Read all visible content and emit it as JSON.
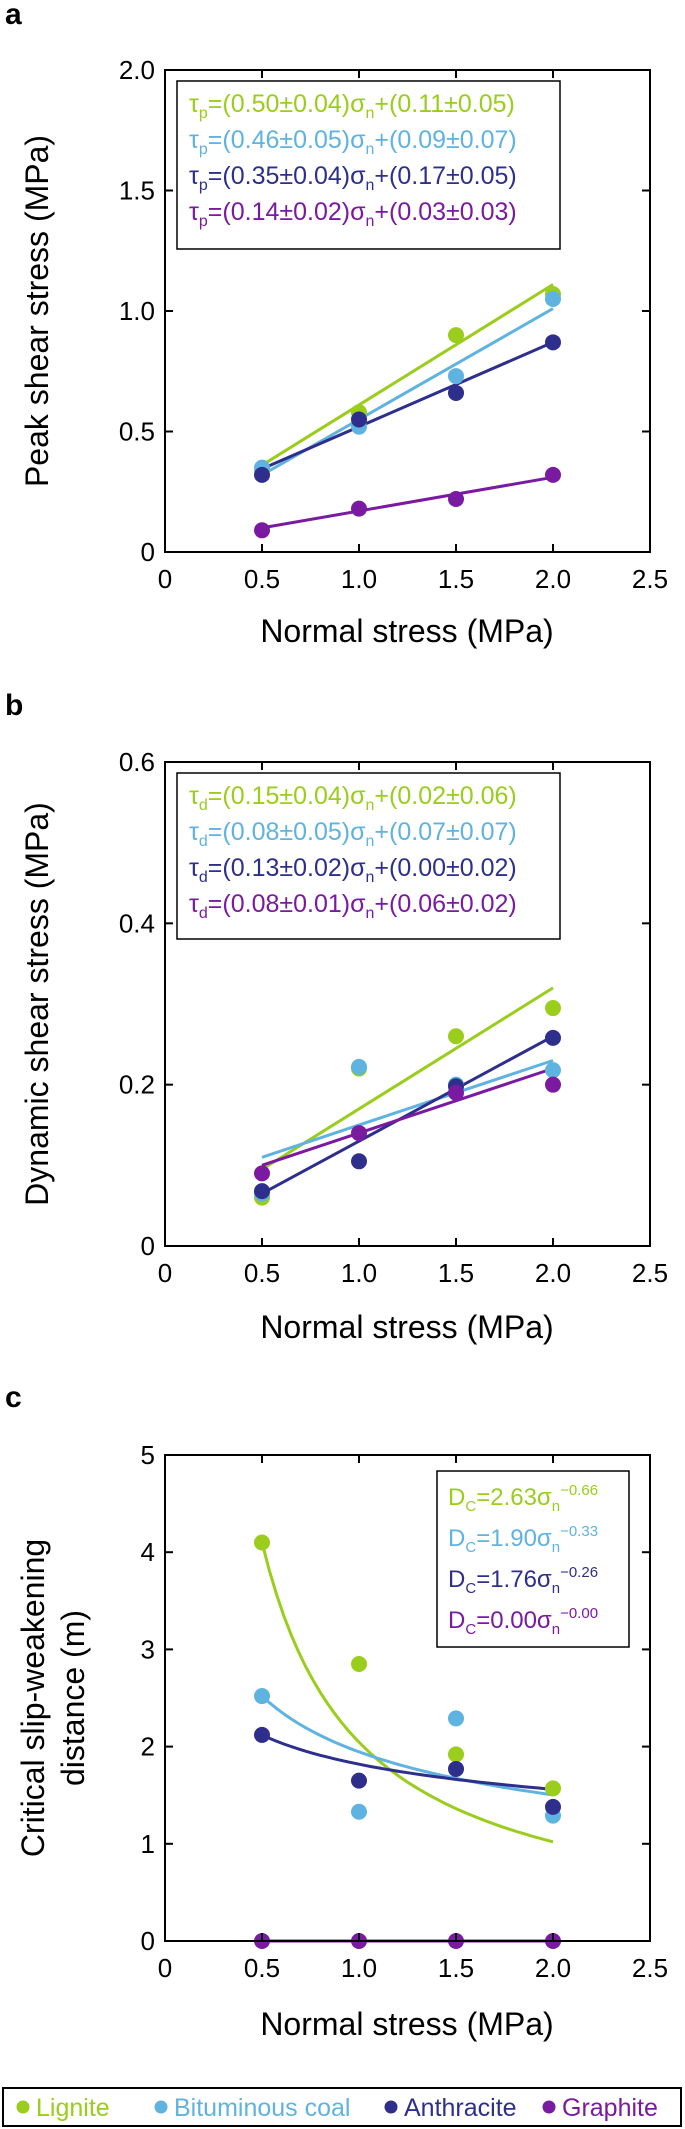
{
  "colors": {
    "lignite": "#9acd1c",
    "bituminous": "#5fb3e0",
    "anthracite": "#2e2f8c",
    "graphite": "#7a1aa0",
    "axis": "#000000"
  },
  "legend": {
    "items": [
      {
        "label": "Lignite",
        "color": "#9acd1c"
      },
      {
        "label": "Bituminous coal",
        "color": "#5fb3e0"
      },
      {
        "label": "Anthracite",
        "color": "#2e2f8c"
      },
      {
        "label": "Graphite",
        "color": "#7a1aa0"
      }
    ]
  },
  "chart_data": [
    {
      "type": "scatter",
      "panel_label": "a",
      "xlabel": "Normal stress (MPa)",
      "ylabel": "Peak shear stress (MPa)",
      "xlim": [
        0,
        2.5
      ],
      "ylim": [
        0,
        2.0
      ],
      "xticks": [
        "0",
        "0.5",
        "1.0",
        "1.5",
        "2.0",
        "2.5"
      ],
      "yticks": [
        "0",
        "0.5",
        "1.0",
        "1.5",
        "2.0"
      ],
      "x": [
        0.5,
        1.0,
        1.5,
        2.0
      ],
      "series": [
        {
          "name": "Lignite",
          "color": "#9acd1c",
          "values": [
            0.34,
            0.58,
            0.9,
            1.07
          ],
          "fit": {
            "a": 0.5,
            "b": 0.11
          },
          "eq": {
            "sym": "τ",
            "sub": "p",
            "pre": "=(0.50±0.04)σ",
            "post": "+(0.11±0.05)",
            "sub2": "n"
          }
        },
        {
          "name": "Bituminous coal",
          "color": "#5fb3e0",
          "values": [
            0.35,
            0.52,
            0.73,
            1.05
          ],
          "fit": {
            "a": 0.46,
            "b": 0.09
          },
          "eq": {
            "sym": "τ",
            "sub": "p",
            "pre": "=(0.46±0.05)σ",
            "post": "+(0.09±0.07)",
            "sub2": "n"
          }
        },
        {
          "name": "Anthracite",
          "color": "#2e2f8c",
          "values": [
            0.32,
            0.55,
            0.66,
            0.87
          ],
          "fit": {
            "a": 0.35,
            "b": 0.17
          },
          "eq": {
            "sym": "τ",
            "sub": "p",
            "pre": "=(0.35±0.04)σ",
            "post": "+(0.17±0.05)",
            "sub2": "n"
          }
        },
        {
          "name": "Graphite",
          "color": "#7a1aa0",
          "values": [
            0.09,
            0.18,
            0.22,
            0.32
          ],
          "fit": {
            "a": 0.14,
            "b": 0.03
          },
          "eq": {
            "sym": "τ",
            "sub": "p",
            "pre": "=(0.14±0.02)σ",
            "post": "+(0.03±0.03)",
            "sub2": "n"
          }
        }
      ]
    },
    {
      "type": "scatter",
      "panel_label": "b",
      "xlabel": "Normal stress (MPa)",
      "ylabel": "Dynamic shear stress (MPa)",
      "xlim": [
        0,
        2.5
      ],
      "ylim": [
        0,
        0.6
      ],
      "xticks": [
        "0",
        "0.5",
        "1.0",
        "1.5",
        "2.0",
        "2.5"
      ],
      "yticks": [
        "0",
        "0.2",
        "0.4",
        "0.6"
      ],
      "x": [
        0.5,
        1.0,
        1.5,
        2.0
      ],
      "series": [
        {
          "name": "Lignite",
          "color": "#9acd1c",
          "values": [
            0.06,
            0.22,
            0.26,
            0.295
          ],
          "fit": {
            "a": 0.15,
            "b": 0.02
          },
          "eq": {
            "sym": "τ",
            "sub": "d",
            "pre": "=(0.15±0.04)σ",
            "post": "+(0.02±0.06)",
            "sub2": "n"
          }
        },
        {
          "name": "Bituminous coal",
          "color": "#5fb3e0",
          "values": [
            0.065,
            0.222,
            0.2,
            0.218
          ],
          "fit": {
            "a": 0.08,
            "b": 0.07
          },
          "eq": {
            "sym": "τ",
            "sub": "d",
            "pre": "=(0.08±0.05)σ",
            "post": "+(0.07±0.07)",
            "sub2": "n"
          }
        },
        {
          "name": "Anthracite",
          "color": "#2e2f8c",
          "values": [
            0.068,
            0.105,
            0.198,
            0.258
          ],
          "fit": {
            "a": 0.13,
            "b": 0.0
          },
          "eq": {
            "sym": "τ",
            "sub": "d",
            "pre": "=(0.13±0.02)σ",
            "post": "+(0.00±0.02)",
            "sub2": "n"
          }
        },
        {
          "name": "Graphite",
          "color": "#7a1aa0",
          "values": [
            0.09,
            0.14,
            0.19,
            0.2
          ],
          "fit": {
            "a": 0.08,
            "b": 0.06
          },
          "eq": {
            "sym": "τ",
            "sub": "d",
            "pre": "=(0.08±0.01)σ",
            "post": "+(0.06±0.02)",
            "sub2": "n"
          }
        }
      ]
    },
    {
      "type": "scatter",
      "panel_label": "c",
      "xlabel": "Normal stress (MPa)",
      "ylabel": [
        "Critical slip-weakening",
        "distance (m)"
      ],
      "xlim": [
        0,
        2.5
      ],
      "ylim": [
        0,
        5
      ],
      "xticks": [
        "0",
        "0.5",
        "1.0",
        "1.5",
        "2.0",
        "2.5"
      ],
      "yticks": [
        "0",
        "1",
        "2",
        "3",
        "4",
        "5"
      ],
      "x": [
        0.5,
        1.0,
        1.5,
        2.0
      ],
      "series": [
        {
          "name": "Lignite",
          "color": "#9acd1c",
          "values": [
            4.1,
            2.85,
            1.92,
            1.57
          ],
          "power": {
            "a": 2.63,
            "b": -0.66,
            "x0": 0.5
          },
          "eq": {
            "sym": "D",
            "sub": "C",
            "pre": "=2.63σ",
            "sub2": "n",
            "sup": "−0.66"
          }
        },
        {
          "name": "Bituminous coal",
          "color": "#5fb3e0",
          "values": [
            2.52,
            1.33,
            2.29,
            1.29
          ],
          "power": {
            "a": 1.9,
            "b": -0.33,
            "x0": 0.5
          },
          "eq": {
            "sym": "D",
            "sub": "C",
            "pre": "=1.90σ",
            "sub2": "n",
            "sup": "−0.33"
          }
        },
        {
          "name": "Anthracite",
          "color": "#2e2f8c",
          "values": [
            2.12,
            1.65,
            1.77,
            1.38
          ],
          "power": {
            "a": 1.76,
            "b": -0.26,
            "x0": 0.5
          },
          "eq": {
            "sym": "D",
            "sub": "C",
            "pre": "=1.76σ",
            "sub2": "n",
            "sup": "−0.26"
          }
        },
        {
          "name": "Graphite",
          "color": "#7a1aa0",
          "values": [
            0.0,
            0.0,
            0.0,
            0.0
          ],
          "power": {
            "a": 0.0,
            "b": -0.0,
            "x0": 0.5
          },
          "eq": {
            "sym": "D",
            "sub": "C",
            "pre": "=0.00σ",
            "sub2": "n",
            "sup": "−0.00"
          }
        }
      ]
    }
  ]
}
